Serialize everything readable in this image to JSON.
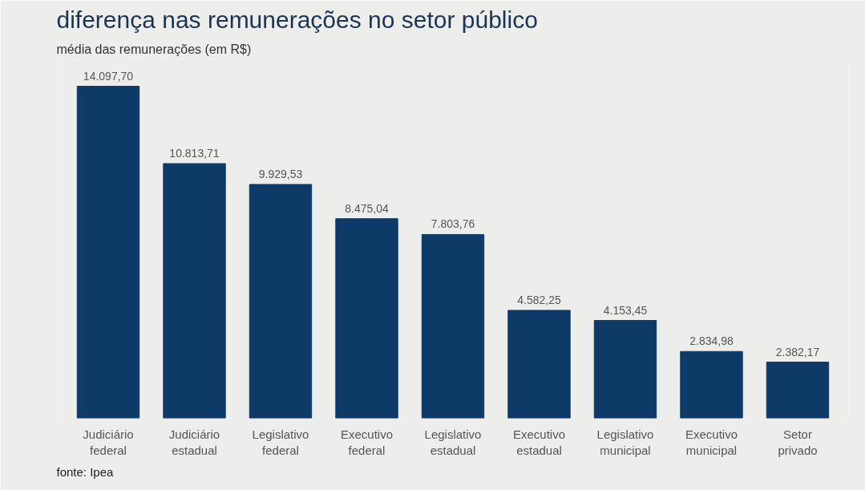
{
  "chart_data": {
    "type": "bar",
    "title": "diferença nas remunerações no setor público",
    "subtitle": "média das remunerações (em R$)",
    "categories": [
      "Judiciário federal",
      "Judiciário estadual",
      "Legislativo federal",
      "Executivo federal",
      "Legislativo estadual",
      "Executivo estadual",
      "Legislativo municipal",
      "Executivo municipal",
      "Setor privado"
    ],
    "values": [
      14097.7,
      10813.71,
      9929.53,
      8475.04,
      7803.76,
      4582.25,
      4153.45,
      2834.98,
      2382.17
    ],
    "value_labels": [
      "14.097,70",
      "10.813,71",
      "9.929,53",
      "8.475,04",
      "7.803,76",
      "4.582,25",
      "4.153,45",
      "2.834,98",
      "2.382,17"
    ],
    "color": "#0d3a66",
    "annotations": [
      "fonte: Ipea"
    ],
    "grid": false
  }
}
